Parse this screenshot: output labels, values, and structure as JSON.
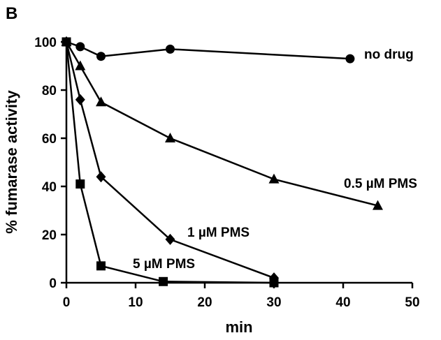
{
  "chart_data": {
    "type": "line",
    "panel_label": "B",
    "title": "",
    "xlabel": "min",
    "ylabel": "% fumarase activity",
    "xlim": [
      0,
      50
    ],
    "ylim": [
      0,
      100
    ],
    "xticks": [
      0,
      10,
      20,
      30,
      40,
      50
    ],
    "yticks": [
      0,
      20,
      40,
      60,
      80,
      100
    ],
    "grid": false,
    "legend": "inline labels next to each series",
    "series": [
      {
        "name": "no drug",
        "marker": "circle",
        "color": "#000000",
        "x": [
          0,
          2,
          5,
          15,
          41
        ],
        "y": [
          100,
          98,
          94,
          97,
          93
        ]
      },
      {
        "name": "0.5 µM PMS",
        "marker": "triangle",
        "color": "#000000",
        "x": [
          0,
          2,
          5,
          15,
          30,
          45
        ],
        "y": [
          100,
          90,
          75,
          60,
          43,
          32
        ]
      },
      {
        "name": "1 µM PMS",
        "marker": "diamond",
        "color": "#000000",
        "x": [
          0,
          2,
          5,
          15,
          30
        ],
        "y": [
          100,
          76,
          44,
          18,
          2
        ]
      },
      {
        "name": "5 µM PMS",
        "marker": "square",
        "color": "#000000",
        "x": [
          0,
          2,
          5,
          14,
          30
        ],
        "y": [
          100,
          41,
          7,
          0.5,
          0
        ]
      }
    ]
  }
}
